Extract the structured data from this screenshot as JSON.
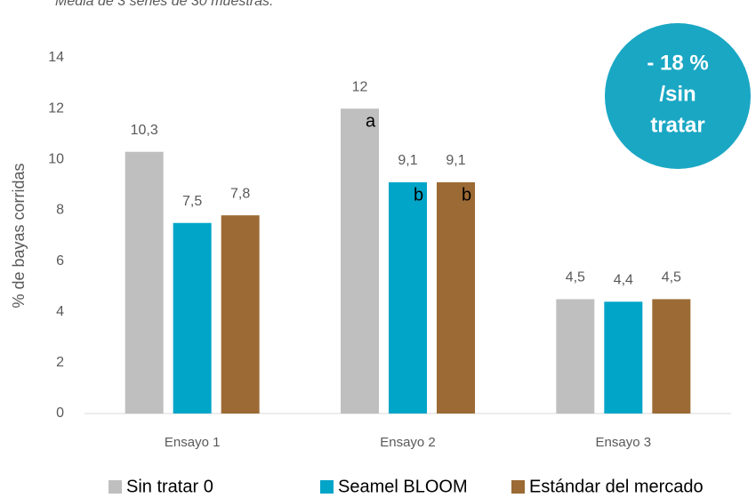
{
  "chart_data": {
    "type": "bar",
    "subtitle": "Media de 3 series de 30 muestras.",
    "y_label": "% de bayas corridas",
    "categories": [
      "Ensayo 1",
      "Ensayo 2",
      "Ensayo 3"
    ],
    "series": [
      {
        "name": "Sin tratar 0",
        "color": "#bfbfbf",
        "values": [
          10.3,
          12,
          4.5
        ],
        "value_labels": [
          "10,3",
          "12",
          "4,5"
        ],
        "letters": [
          null,
          "a",
          null
        ]
      },
      {
        "name": "Seamel BLOOM",
        "color": "#00a5c8",
        "values": [
          7.5,
          9.1,
          4.4
        ],
        "value_labels": [
          "7,5",
          "9,1",
          "4,4"
        ],
        "letters": [
          null,
          "b",
          null
        ]
      },
      {
        "name": "Estándar del mercado",
        "color": "#9c6a34",
        "values": [
          7.8,
          9.1,
          4.5
        ],
        "value_labels": [
          "7,8",
          "9,1",
          "4,5"
        ],
        "letters": [
          null,
          "b",
          null
        ]
      }
    ],
    "ylim": [
      0,
      14
    ],
    "yticks": [
      0,
      2,
      4,
      6,
      8,
      10,
      12,
      14
    ],
    "grid": false,
    "badge": {
      "lines": [
        "- 18 %",
        "/sin",
        "tratar"
      ],
      "color": "#1aa7c4"
    },
    "legend": "bottom"
  }
}
